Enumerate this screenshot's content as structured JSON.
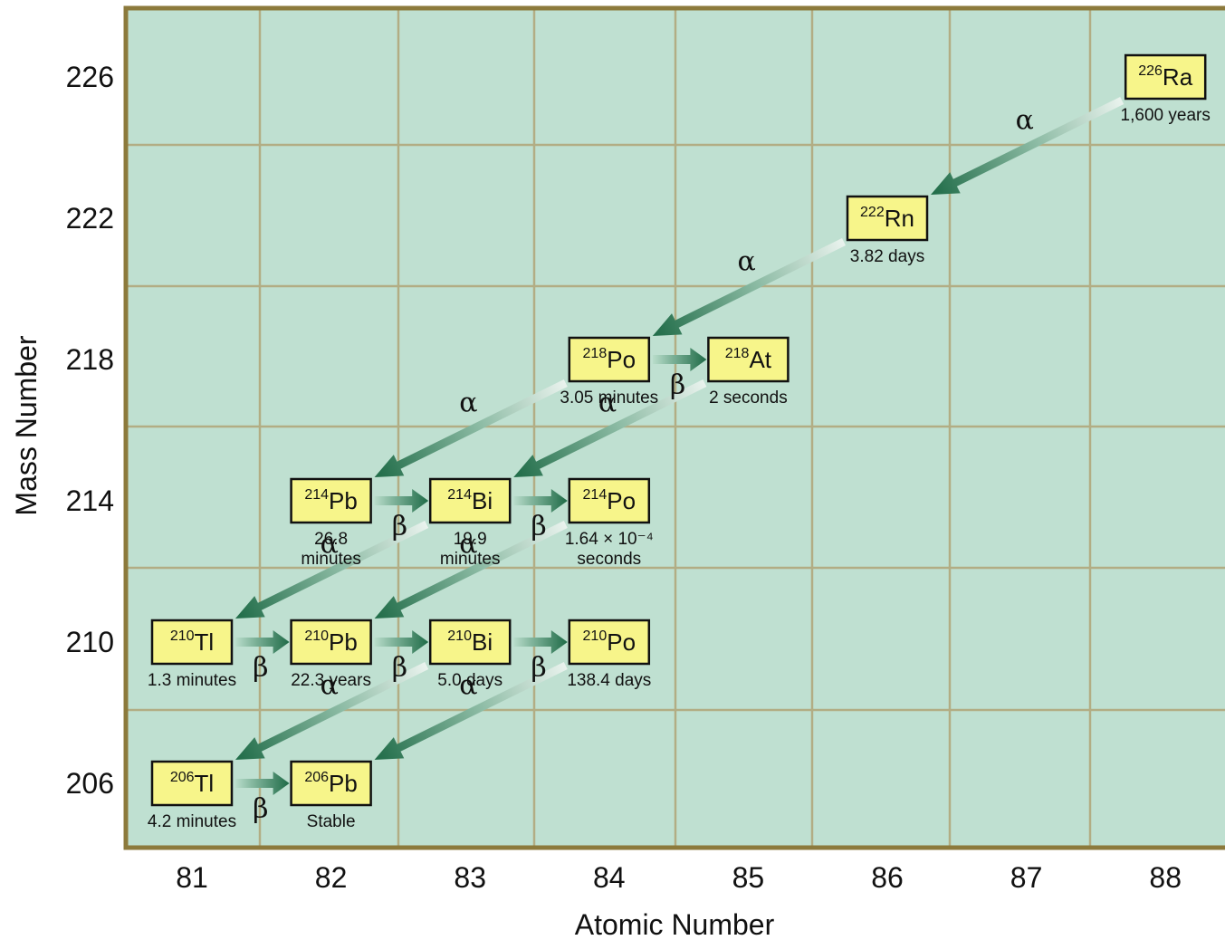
{
  "colors": {
    "plot_background": "#bfe0d1",
    "grid": "#b2ad84",
    "frame": "#8c7a3c",
    "nuclide_box": "#f7f58a",
    "arrow": "#1f6b47"
  },
  "chart_data": {
    "type": "decay-chain",
    "xlabel": "Atomic Number",
    "ylabel": "Mass Number",
    "x_ticks": [
      "81",
      "82",
      "83",
      "84",
      "85",
      "86",
      "87",
      "88"
    ],
    "y_ticks": [
      "206",
      "210",
      "214",
      "218",
      "222",
      "226"
    ],
    "xlim": [
      80.5,
      88.5
    ],
    "ylim": [
      204,
      228
    ],
    "grid": true,
    "nuclides": [
      {
        "id": "ra226",
        "mass": "226",
        "symbol": "Ra",
        "z": 88,
        "a": 226,
        "half_life": [
          "1,600 years"
        ]
      },
      {
        "id": "rn222",
        "mass": "222",
        "symbol": "Rn",
        "z": 86,
        "a": 222,
        "half_life": [
          "3.82 days"
        ]
      },
      {
        "id": "po218",
        "mass": "218",
        "symbol": "Po",
        "z": 84,
        "a": 218,
        "half_life": [
          "3.05 minutes"
        ]
      },
      {
        "id": "at218",
        "mass": "218",
        "symbol": "At",
        "z": 85,
        "a": 218,
        "half_life": [
          "2 seconds"
        ]
      },
      {
        "id": "pb214",
        "mass": "214",
        "symbol": "Pb",
        "z": 82,
        "a": 214,
        "half_life": [
          "26.8",
          "minutes"
        ]
      },
      {
        "id": "bi214",
        "mass": "214",
        "symbol": "Bi",
        "z": 83,
        "a": 214,
        "half_life": [
          "19.9",
          "minutes"
        ]
      },
      {
        "id": "po214",
        "mass": "214",
        "symbol": "Po",
        "z": 84,
        "a": 214,
        "half_life": [
          "1.64 × 10⁻⁴",
          "seconds"
        ]
      },
      {
        "id": "tl210",
        "mass": "210",
        "symbol": "Tl",
        "z": 81,
        "a": 210,
        "half_life": [
          "1.3 minutes"
        ]
      },
      {
        "id": "pb210",
        "mass": "210",
        "symbol": "Pb",
        "z": 82,
        "a": 210,
        "half_life": [
          "22.3 years"
        ]
      },
      {
        "id": "bi210",
        "mass": "210",
        "symbol": "Bi",
        "z": 83,
        "a": 210,
        "half_life": [
          "5.0 days"
        ]
      },
      {
        "id": "po210",
        "mass": "210",
        "symbol": "Po",
        "z": 84,
        "a": 210,
        "half_life": [
          "138.4 days"
        ]
      },
      {
        "id": "tl206",
        "mass": "206",
        "symbol": "Tl",
        "z": 81,
        "a": 206,
        "half_life": [
          "4.2 minutes"
        ]
      },
      {
        "id": "pb206",
        "mass": "206",
        "symbol": "Pb",
        "z": 82,
        "a": 206,
        "half_life": [
          "Stable"
        ]
      }
    ],
    "decays": [
      {
        "from": "ra226",
        "to": "rn222",
        "mode": "α"
      },
      {
        "from": "rn222",
        "to": "po218",
        "mode": "α"
      },
      {
        "from": "po218",
        "to": "at218",
        "mode": "β"
      },
      {
        "from": "po218",
        "to": "pb214",
        "mode": "α"
      },
      {
        "from": "at218",
        "to": "bi214",
        "mode": "α"
      },
      {
        "from": "pb214",
        "to": "bi214",
        "mode": "β"
      },
      {
        "from": "bi214",
        "to": "po214",
        "mode": "β"
      },
      {
        "from": "bi214",
        "to": "tl210",
        "mode": "α"
      },
      {
        "from": "po214",
        "to": "pb210",
        "mode": "α"
      },
      {
        "from": "tl210",
        "to": "pb210",
        "mode": "β"
      },
      {
        "from": "pb210",
        "to": "bi210",
        "mode": "β"
      },
      {
        "from": "bi210",
        "to": "po210",
        "mode": "β"
      },
      {
        "from": "bi210",
        "to": "tl206",
        "mode": "α"
      },
      {
        "from": "po210",
        "to": "pb206",
        "mode": "α"
      },
      {
        "from": "tl206",
        "to": "pb206",
        "mode": "β"
      }
    ]
  }
}
